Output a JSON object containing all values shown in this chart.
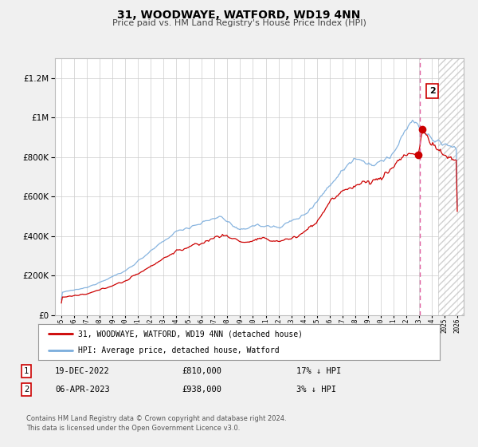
{
  "title": "31, WOODWAYE, WATFORD, WD19 4NN",
  "subtitle": "Price paid vs. HM Land Registry's House Price Index (HPI)",
  "legend_label_red": "31, WOODWAYE, WATFORD, WD19 4NN (detached house)",
  "legend_label_blue": "HPI: Average price, detached house, Watford",
  "transaction1_date": "19-DEC-2022",
  "transaction1_price": "£810,000",
  "transaction1_hpi": "17% ↓ HPI",
  "transaction2_date": "06-APR-2023",
  "transaction2_price": "£938,000",
  "transaction2_hpi": "3% ↓ HPI",
  "footnote1": "Contains HM Land Registry data © Crown copyright and database right 2024.",
  "footnote2": "This data is licensed under the Open Government Licence v3.0.",
  "xlim_start": 1994.5,
  "xlim_end": 2026.5,
  "ylim_min": 0,
  "ylim_max": 1300000,
  "background_color": "#f0f0f0",
  "plot_bg_color": "#ffffff",
  "red_line_color": "#cc0000",
  "blue_line_color": "#7aacdc",
  "vline_color": "#e060a0",
  "hatch_color": "#cccccc",
  "t1_year": 2022.97,
  "t2_year": 2023.27,
  "t1_price": 810000,
  "t2_price": 938000,
  "t2_hpi_val": 965000,
  "vline_x": 2023.05
}
